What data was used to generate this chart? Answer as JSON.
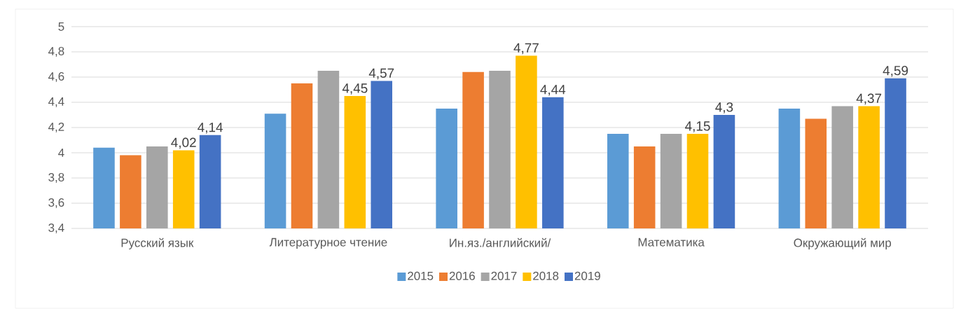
{
  "chart_data": {
    "type": "bar",
    "categories": [
      "Русский язык",
      "Литературное чтение",
      "Ин.яз./английский/",
      "Математика",
      "Окружающий мир"
    ],
    "series": [
      {
        "name": "2015",
        "color": "#5b9bd5",
        "values": [
          4.04,
          4.31,
          4.35,
          4.15,
          4.35
        ]
      },
      {
        "name": "2016",
        "color": "#ed7d31",
        "values": [
          3.98,
          4.55,
          4.64,
          4.05,
          4.27
        ]
      },
      {
        "name": "2017",
        "color": "#a5a5a5",
        "values": [
          4.05,
          4.65,
          4.65,
          4.15,
          4.37
        ]
      },
      {
        "name": "2018",
        "color": "#ffc000",
        "values": [
          4.02,
          4.45,
          4.77,
          4.15,
          4.37
        ],
        "value_labels": [
          "4,02",
          "4,45",
          "4,77",
          "4,15",
          "4,37"
        ]
      },
      {
        "name": "2019",
        "color": "#4472c4",
        "values": [
          4.14,
          4.57,
          4.44,
          4.3,
          4.59
        ],
        "value_labels": [
          "4,14",
          "4,57",
          "4,44",
          "4,3",
          "4,59"
        ]
      }
    ],
    "ylim": [
      3.4,
      5
    ],
    "yticks": [
      {
        "value": 3.4,
        "label": "3,4"
      },
      {
        "value": 3.6,
        "label": "3,6"
      },
      {
        "value": 3.8,
        "label": "3,8"
      },
      4,
      {
        "value": 4.2,
        "label": "4,2"
      },
      {
        "value": 4.4,
        "label": "4,4"
      },
      {
        "value": 4.6,
        "label": "4,6"
      },
      {
        "value": 4.8,
        "label": "4,8"
      },
      5
    ],
    "grid": "y",
    "legend": "bottom"
  }
}
